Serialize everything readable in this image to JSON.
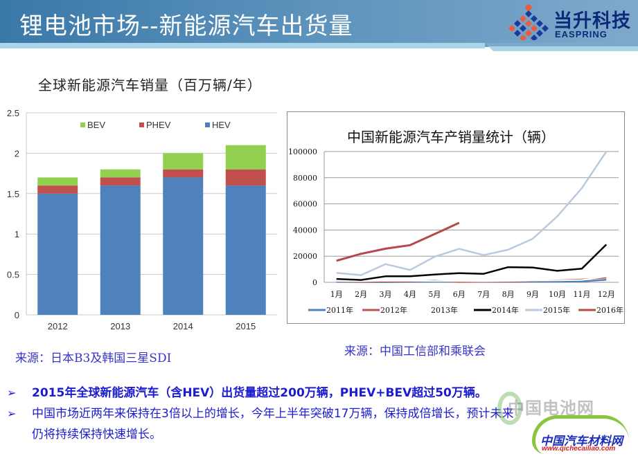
{
  "header": {
    "title": "锂电池市场--新能源汽车出货量",
    "logo_cn": "当升科技",
    "logo_en": "EASPRING"
  },
  "sources": {
    "left": "来源：日本B3及韩国三星SDI",
    "right": "来源：中国工信部和乘联会"
  },
  "bullets": [
    {
      "text": "2015年全球新能源汽车（含HEV）出货量超过200万辆，PHEV+BEV超过50万辆。"
    },
    {
      "text": "中国市场近两年来保持在3倍以上的增长，今年上半年突破17万辆，保持成倍增长，预计未来",
      "continuation": "仍将持续保持快速增长。"
    }
  ],
  "watermarks": {
    "battery_net": "中国电池网",
    "auto_material_net": "中国汽车材料网",
    "url": "www.qichecailiao.com"
  },
  "colors": {
    "hev": "#4f81bd",
    "phev": "#c0504d",
    "bev": "#92d050",
    "y2011": "#4f81bd",
    "y2012": "#c0504d",
    "y2013": "#ffffff",
    "y2014": "#000000",
    "y2015": "#b9c9e0",
    "y2016": "#b5484a",
    "bullet_text": "#1b1bd0",
    "source_text": "#3535c8"
  },
  "chart_data": [
    {
      "type": "bar",
      "stacked": true,
      "title": "全球新能源汽车销量（百万辆/年）",
      "categories": [
        "2012",
        "2013",
        "2014",
        "2015"
      ],
      "series": [
        {
          "name": "HEV",
          "values": [
            1.5,
            1.6,
            1.7,
            1.6
          ]
        },
        {
          "name": "PHEV",
          "values": [
            0.1,
            0.1,
            0.1,
            0.2
          ]
        },
        {
          "name": "BEV",
          "values": [
            0.1,
            0.1,
            0.2,
            0.3
          ]
        }
      ],
      "legend": [
        "BEV",
        "PHEV",
        "HEV"
      ],
      "legend_position": "top-inside",
      "yticks": [
        "0",
        "0.5",
        "1",
        "1.5",
        "2",
        "2.5"
      ],
      "ylim": [
        0,
        2.5
      ],
      "grid": true,
      "xlabel": "",
      "ylabel": ""
    },
    {
      "type": "line",
      "title": "中国新能源汽车产销量统计（辆）",
      "categories": [
        "1月",
        "2月",
        "3月",
        "4月",
        "5月",
        "6月",
        "7月",
        "8月",
        "9月",
        "10月",
        "11月",
        "12月"
      ],
      "series": [
        {
          "name": "2011年",
          "values": [
            300,
            200,
            200,
            300,
            400,
            300,
            300,
            300,
            400,
            500,
            700,
            2000
          ]
        },
        {
          "name": "2012年",
          "values": [
            800,
            300,
            600,
            700,
            1300,
            200,
            300,
            500,
            1000,
            1600,
            2300,
            3500
          ]
        },
        {
          "name": "2013年",
          "values": [
            1000,
            800,
            1200,
            1100,
            1000,
            900,
            800,
            1000,
            1300,
            1500,
            1800,
            4500
          ]
        },
        {
          "name": "2014年",
          "values": [
            2600,
            1800,
            4600,
            4600,
            6000,
            7000,
            6500,
            11600,
            11300,
            8800,
            10400,
            28900
          ]
        },
        {
          "name": "2015年",
          "values": [
            7200,
            5500,
            13900,
            9400,
            19600,
            25600,
            20800,
            24900,
            33300,
            50400,
            72000,
            100000
          ]
        },
        {
          "name": "2016年",
          "values": [
            16500,
            21800,
            25700,
            28400,
            36900,
            45500
          ]
        }
      ],
      "yticks": [
        "0",
        "20000",
        "40000",
        "60000",
        "80000",
        "100000"
      ],
      "ylim": [
        0,
        100000
      ],
      "grid": true,
      "legend_position": "bottom",
      "xlabel": "",
      "ylabel": ""
    }
  ]
}
